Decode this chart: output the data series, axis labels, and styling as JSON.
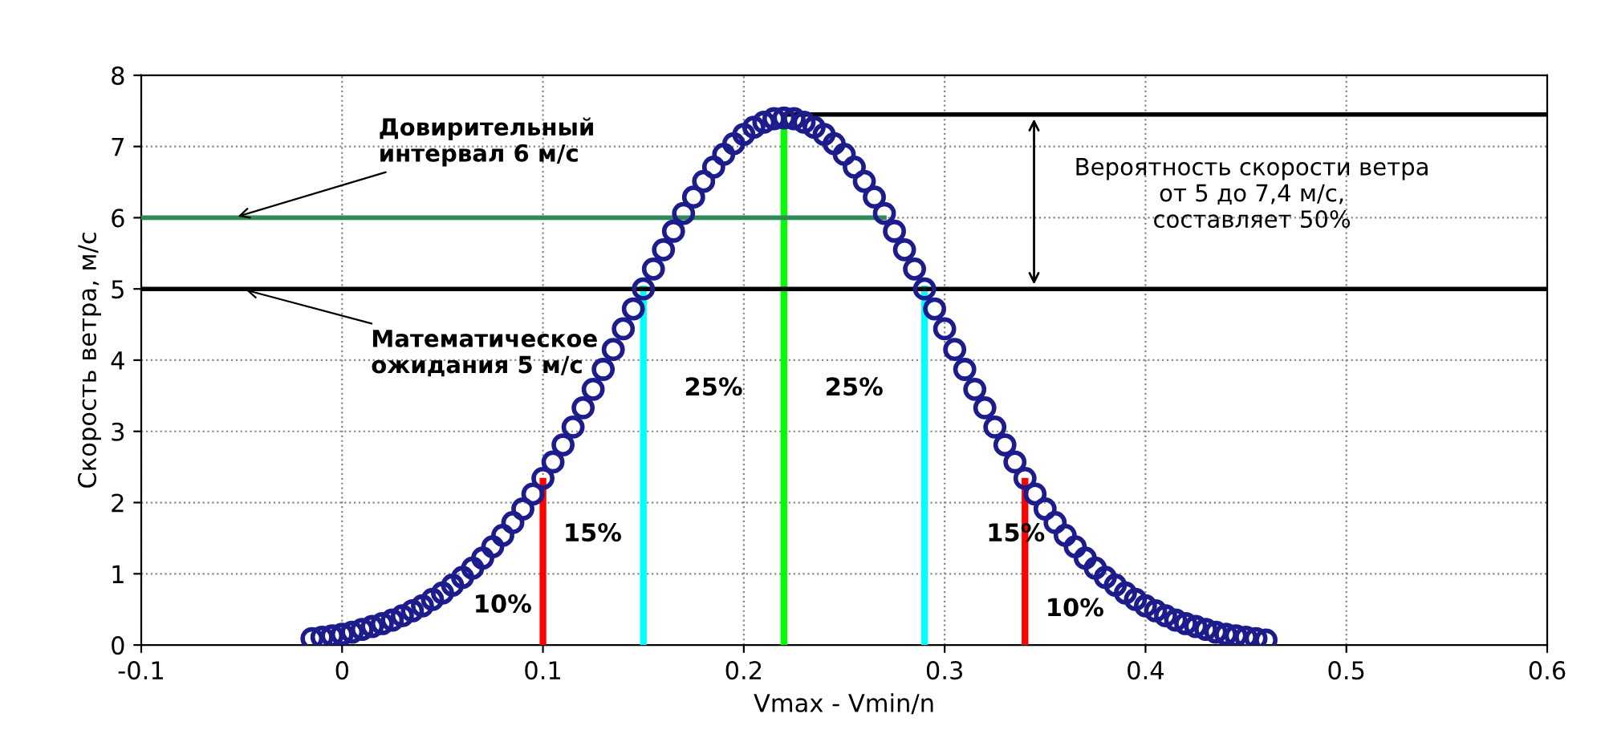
{
  "chart_data": {
    "type": "scatter",
    "xlabel": "Vmax - Vmin/n",
    "ylabel": "Скорость ветра, м/с",
    "xlim": [
      -0.1,
      0.6
    ],
    "xticks": [
      -0.1,
      0,
      0.1,
      0.2,
      0.3,
      0.4,
      0.5,
      0.6
    ],
    "ylim": [
      0,
      8
    ],
    "yticks": [
      0,
      1,
      2,
      3,
      4,
      5,
      6,
      7,
      8
    ],
    "grid": true,
    "series": [
      {
        "marker": "circle",
        "color": "#1c1c8c",
        "x": [
          -0.015,
          -0.01,
          -0.005,
          0,
          0.005,
          0.01,
          0.015,
          0.02,
          0.025,
          0.03,
          0.035,
          0.04,
          0.045,
          0.05,
          0.055,
          0.06,
          0.065,
          0.07,
          0.075,
          0.08,
          0.085,
          0.09,
          0.095,
          0.1,
          0.105,
          0.11,
          0.115,
          0.12,
          0.125,
          0.13,
          0.135,
          0.14,
          0.145,
          0.15,
          0.155,
          0.16,
          0.165,
          0.17,
          0.175,
          0.18,
          0.185,
          0.19,
          0.195,
          0.2,
          0.205,
          0.21,
          0.215,
          0.22,
          0.225,
          0.23,
          0.235,
          0.24,
          0.245,
          0.25,
          0.255,
          0.26,
          0.265,
          0.27,
          0.275,
          0.28,
          0.285,
          0.29,
          0.295,
          0.3,
          0.305,
          0.31,
          0.315,
          0.32,
          0.325,
          0.33,
          0.335,
          0.34,
          0.345,
          0.35,
          0.355,
          0.36,
          0.365,
          0.37,
          0.375,
          0.38,
          0.385,
          0.39,
          0.395,
          0.4,
          0.405,
          0.41,
          0.415,
          0.42,
          0.425,
          0.43,
          0.435,
          0.44,
          0.445,
          0.45,
          0.455,
          0.46
        ],
        "values": [
          0.09,
          0.11,
          0.13,
          0.15,
          0.18,
          0.22,
          0.26,
          0.3,
          0.35,
          0.41,
          0.48,
          0.55,
          0.64,
          0.73,
          0.84,
          0.95,
          1.08,
          1.22,
          1.38,
          1.54,
          1.72,
          1.91,
          2.12,
          2.34,
          2.57,
          2.81,
          3.06,
          3.33,
          3.59,
          3.87,
          4.15,
          4.44,
          4.72,
          5.0,
          5.28,
          5.55,
          5.81,
          6.06,
          6.29,
          6.51,
          6.71,
          6.89,
          7.04,
          7.17,
          7.27,
          7.34,
          7.39,
          7.4,
          7.39,
          7.34,
          7.27,
          7.17,
          7.04,
          6.89,
          6.71,
          6.51,
          6.29,
          6.06,
          5.81,
          5.55,
          5.28,
          5.0,
          4.72,
          4.44,
          4.15,
          3.87,
          3.59,
          3.33,
          3.06,
          2.81,
          2.57,
          2.34,
          2.12,
          1.91,
          1.72,
          1.54,
          1.38,
          1.22,
          1.08,
          0.95,
          0.84,
          0.73,
          0.64,
          0.55,
          0.48,
          0.41,
          0.35,
          0.3,
          0.26,
          0.22,
          0.18,
          0.15,
          0.13,
          0.11,
          0.09,
          0.07
        ]
      },
      {
        "type": "line",
        "color": "#ff0000",
        "x": [
          0.1,
          0.1
        ],
        "values": [
          0,
          2.3
        ]
      },
      {
        "type": "line",
        "color": "#ff0000",
        "x": [
          0.34,
          0.34
        ],
        "values": [
          0,
          2.3
        ]
      },
      {
        "type": "line",
        "color": "#00ffff",
        "x": [
          0.15,
          0.15
        ],
        "values": [
          0,
          5.0
        ]
      },
      {
        "type": "line",
        "color": "#00ffff",
        "x": [
          0.29,
          0.29
        ],
        "values": [
          0,
          5.0
        ]
      },
      {
        "type": "line",
        "color": "#00ff00",
        "x": [
          0.22,
          0.22
        ],
        "values": [
          0,
          7.4
        ]
      },
      {
        "type": "line",
        "color": "#2e8b57",
        "x": [
          -0.1,
          0.27
        ],
        "values": [
          6.0,
          6.0
        ]
      },
      {
        "type": "line",
        "color": "#000000",
        "x": [
          0.22,
          0.6
        ],
        "values": [
          7.45,
          7.45
        ]
      }
    ],
    "ref_lines": [
      {
        "axis": "y",
        "value": 5,
        "color": "#000000"
      }
    ],
    "annotations": [
      {
        "text": "Довирительный\nинтервал 6 м/с",
        "x": -0.054,
        "y": 6.0
      },
      {
        "text": "Математическое\nожидания 5 м/с",
        "x": -0.05,
        "y": 5.0
      },
      "Вероятность скорости ветра\nот 5 до 7,4 м/с,\nсоставляет 50%",
      "10%",
      "15%",
      "25%",
      "25%",
      "15%",
      "10%"
    ]
  }
}
